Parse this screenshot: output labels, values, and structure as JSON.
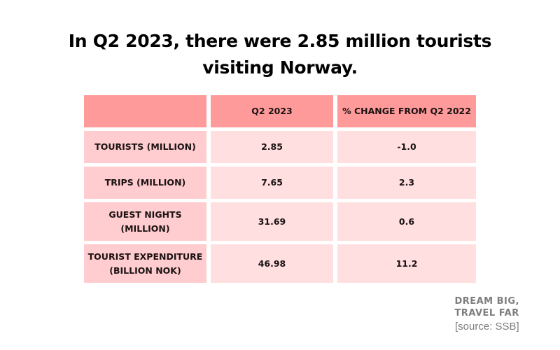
{
  "title": "In Q2 2023, there were 2.85 million tourists visiting Norway.",
  "title_lines": [
    "In Q2 2023, there were 2.85 million tourists",
    "visiting Norway."
  ],
  "table": {
    "headers": [
      "",
      "Q2 2023",
      "% CHANGE FROM Q2 2022"
    ],
    "rows": [
      {
        "label": "TOURISTS (MILLION)",
        "label_lines": [
          "TOURISTS (MILLION)"
        ],
        "q2_2023": "2.85",
        "change": "-1.0"
      },
      {
        "label": "TRIPS (MILLION)",
        "label_lines": [
          "TRIPS (MILLION)"
        ],
        "q2_2023": "7.65",
        "change": "2.3"
      },
      {
        "label": "GUEST NIGHTS (MILLION)",
        "label_lines": [
          "GUEST NIGHTS",
          "(MILLION)"
        ],
        "q2_2023": "31.69",
        "change": "0.6"
      },
      {
        "label": "TOURIST EXPENDITURE (BILLION NOK)",
        "label_lines": [
          "TOURIST EXPENDITURE",
          "(BILLION NOK)"
        ],
        "q2_2023": "46.98",
        "change": "11.2"
      }
    ]
  },
  "branding": {
    "line1": "DREAM BIG,",
    "line2": "TRAVEL FAR"
  },
  "source": "[source: SSB]",
  "colors": {
    "header": "#ff9a9a",
    "label_cell": "#ffcccf",
    "value_cell": "#ffdfe0",
    "brand_text": "#7d7d7d"
  },
  "chart_data": {
    "type": "table",
    "title": "In Q2 2023, there were 2.85 million tourists visiting Norway.",
    "columns": [
      "",
      "Q2 2023",
      "% CHANGE FROM Q2 2022"
    ],
    "categories": [
      "TOURISTS (MILLION)",
      "TRIPS (MILLION)",
      "GUEST NIGHTS (MILLION)",
      "TOURIST EXPENDITURE (BILLION NOK)"
    ],
    "series": [
      {
        "name": "Q2 2023",
        "values": [
          2.85,
          7.65,
          31.69,
          46.98
        ]
      },
      {
        "name": "% CHANGE FROM Q2 2022",
        "values": [
          -1.0,
          2.3,
          0.6,
          11.2
        ]
      }
    ],
    "source": "SSB"
  }
}
